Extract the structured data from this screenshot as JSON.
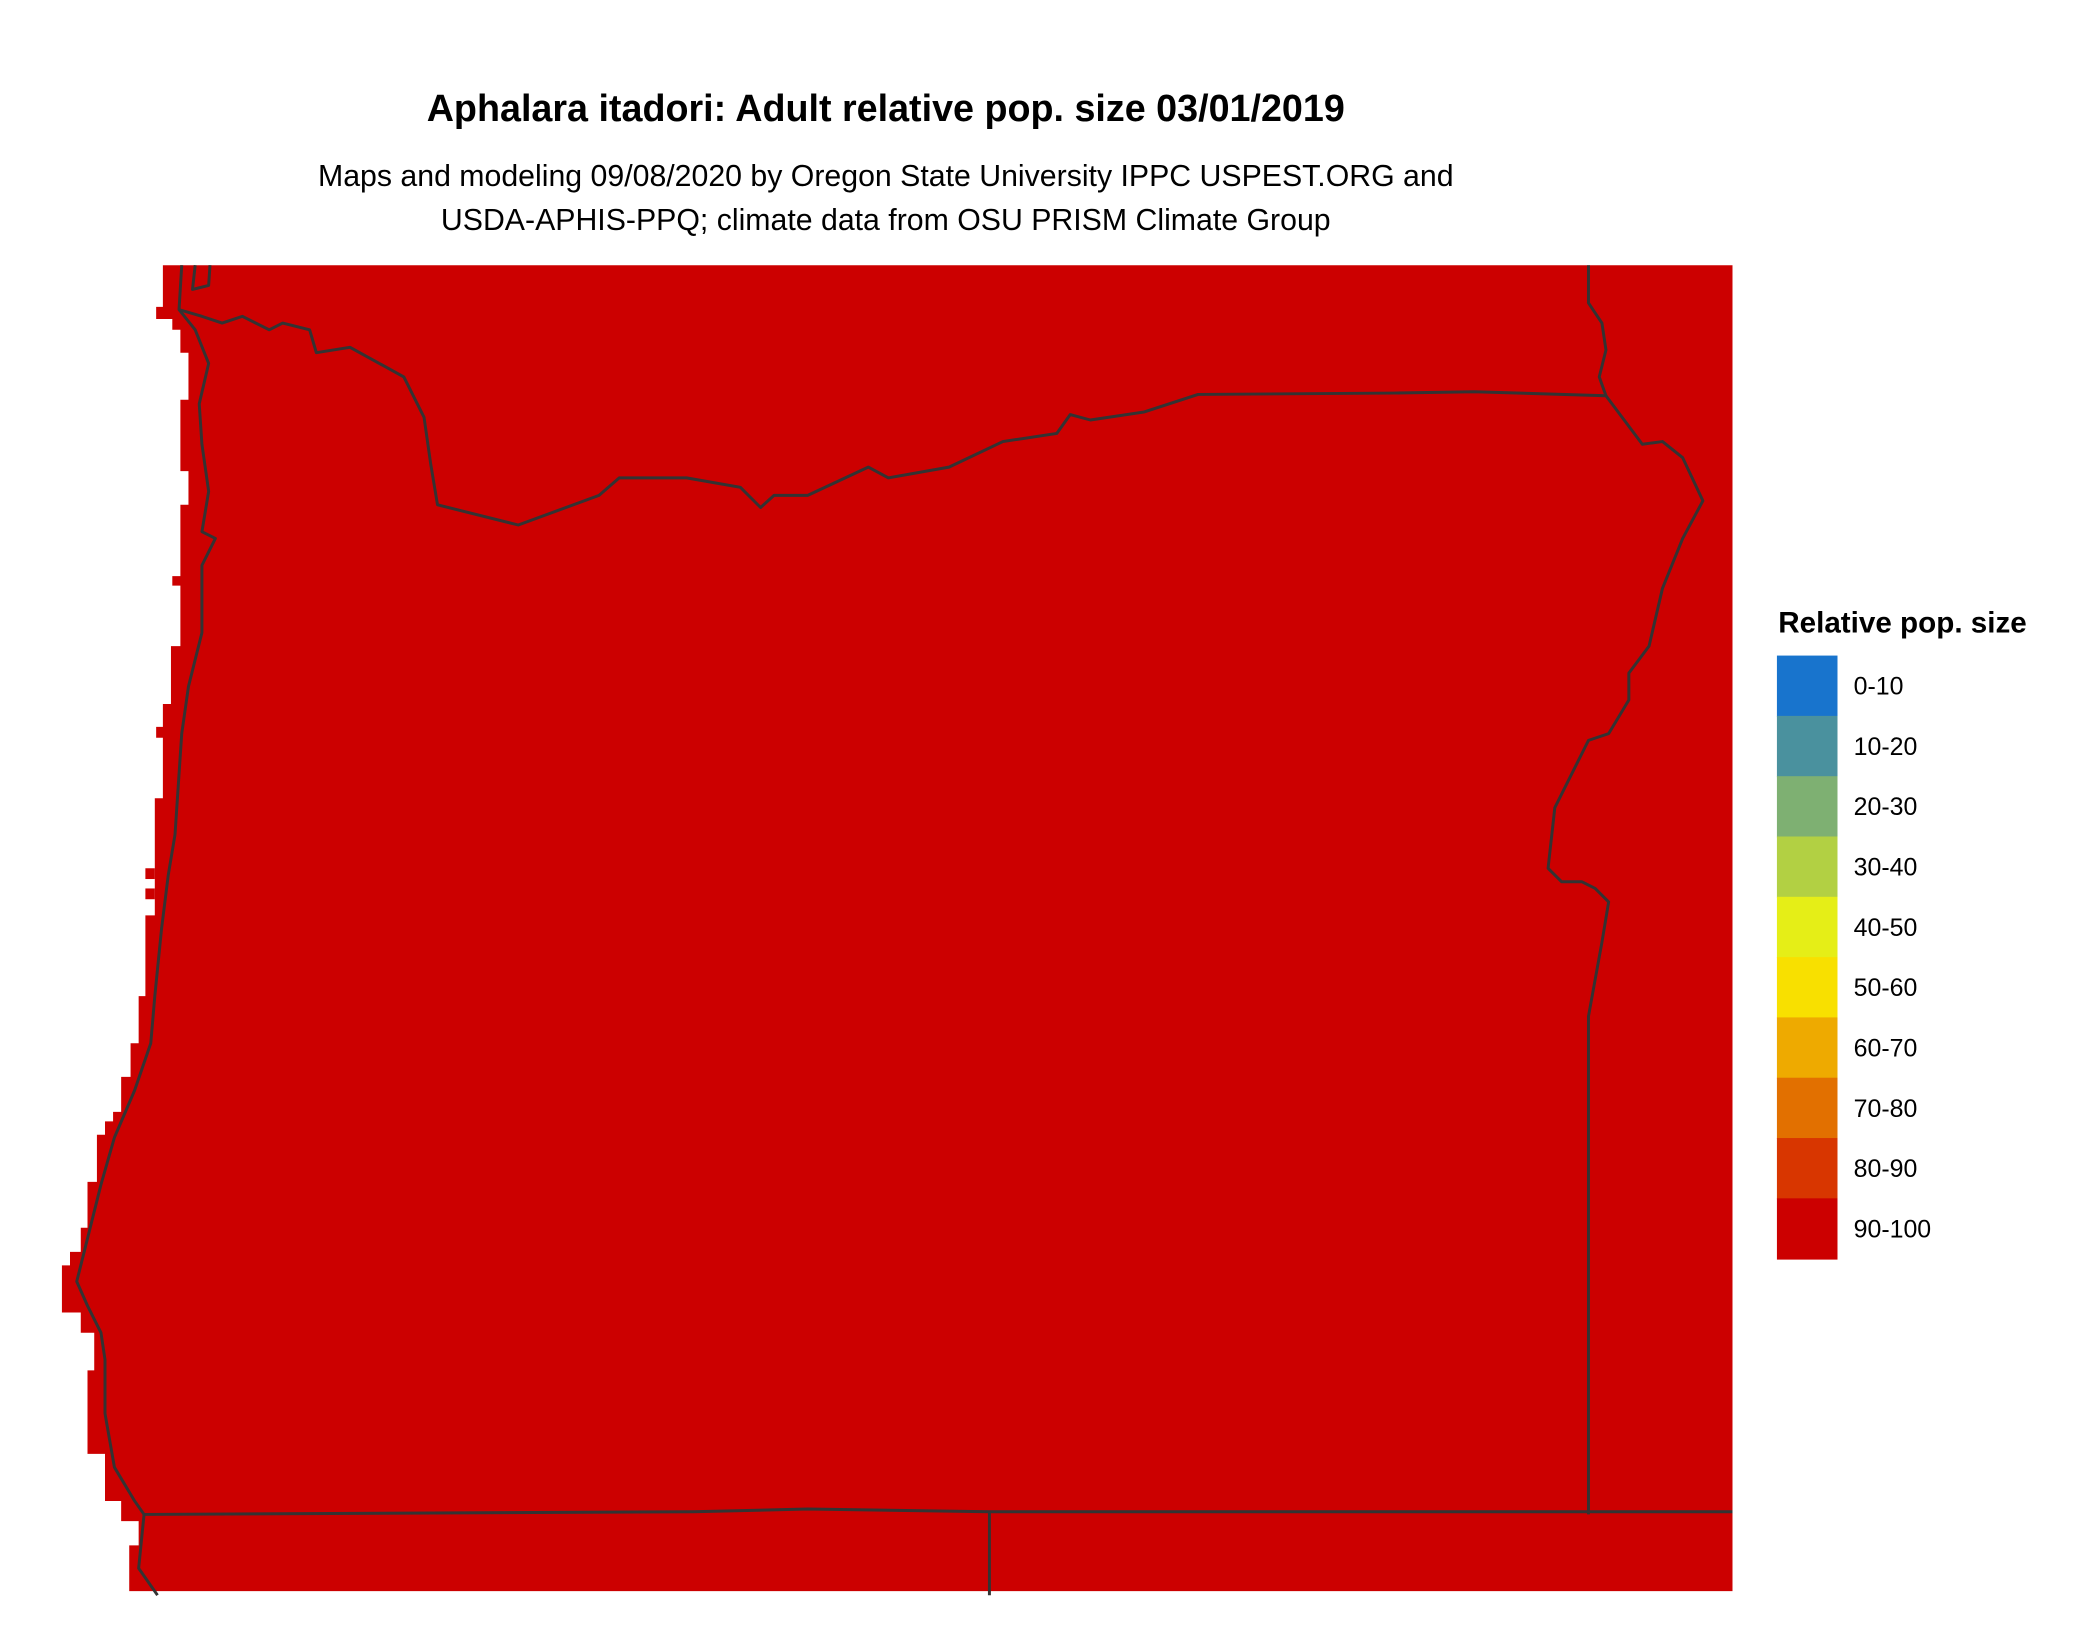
{
  "title": "Aphalara itadori: Adult relative pop. size 03/01/2019",
  "subtitle_lines": [
    "Maps and modeling 09/08/2020 by Oregon State University IPPC USPEST.ORG and",
    "USDA-APHIS-PPQ; climate data from OSU PRISM Climate Group"
  ],
  "map": {
    "region_fill_class": "90-100",
    "fill_color": "#CC0000",
    "boundary_color": "#333333"
  },
  "legend": {
    "title": "Relative pop. size",
    "items": [
      {
        "label": "0-10",
        "color": "#1874CD"
      },
      {
        "label": "10-20",
        "color": "#4A919E"
      },
      {
        "label": "20-30",
        "color": "#7EB072"
      },
      {
        "label": "30-40",
        "color": "#B2D043"
      },
      {
        "label": "40-50",
        "color": "#E5EE17"
      },
      {
        "label": "50-60",
        "color": "#F8E000"
      },
      {
        "label": "60-70",
        "color": "#EEAA00"
      },
      {
        "label": "70-80",
        "color": "#E27000"
      },
      {
        "label": "80-90",
        "color": "#D83600"
      },
      {
        "label": "90-100",
        "color": "#CC0000"
      }
    ]
  }
}
